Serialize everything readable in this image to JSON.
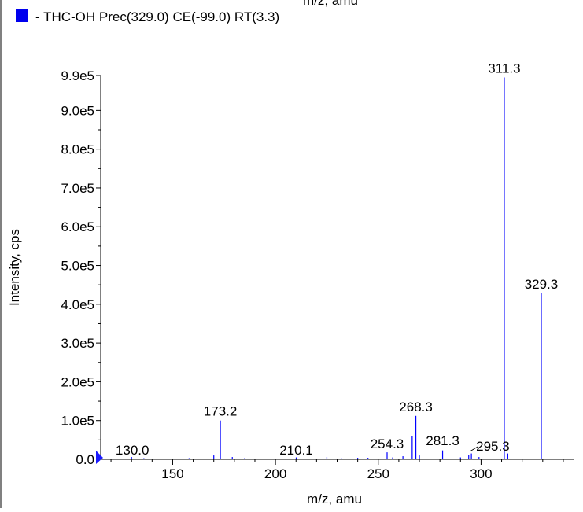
{
  "top_cut_label": "m/z, amu",
  "legend": {
    "color": "#0000ee",
    "text": "- THC-OH Prec(329.0) CE(-99.0) RT(3.3)"
  },
  "colors": {
    "series": "#0000ff",
    "axis": "#000000",
    "marker": "#1a1aff"
  },
  "chart_data": {
    "type": "bar",
    "xlabel": "m/z, amu",
    "ylabel": "Intensity, cps",
    "xlim": [
      115,
      345
    ],
    "ylim": [
      0,
      990000
    ],
    "x_ticks": [
      150,
      200,
      250,
      300
    ],
    "x_tick_labels": [
      "150",
      "200",
      "250",
      "300"
    ],
    "y_ticks": [
      0,
      100000,
      200000,
      300000,
      400000,
      500000,
      600000,
      700000,
      800000,
      900000,
      990000
    ],
    "y_tick_labels": [
      "0.0",
      "1.0e5",
      "2.0e5",
      "3.0e5",
      "4.0e5",
      "5.0e5",
      "6.0e5",
      "7.0e5",
      "8.0e5",
      "9.0e5",
      "9.9e5"
    ],
    "series": [
      {
        "x": [
          130.0,
          136.0,
          145.0,
          158.0,
          170.0,
          173.2,
          179.0,
          185.0,
          195.0,
          210.1,
          225.0,
          232.0,
          240.0,
          245.0,
          254.3,
          257.0,
          262.0,
          266.5,
          268.3,
          270.0,
          281.3,
          290.0,
          294.0,
          295.3,
          299.0,
          311.3,
          313.0,
          329.3
        ],
        "y": [
          6000,
          3000,
          2000,
          3000,
          10000,
          100000,
          6000,
          3000,
          2000,
          5000,
          6000,
          3000,
          4000,
          4000,
          18000,
          5000,
          8000,
          60000,
          112000,
          10000,
          23000,
          5000,
          12000,
          15000,
          6000,
          985000,
          15000,
          428000
        ]
      }
    ],
    "peak_labels": [
      {
        "x": 130.0,
        "text": "130.0"
      },
      {
        "x": 173.2,
        "text": "173.2"
      },
      {
        "x": 210.1,
        "text": "210.1"
      },
      {
        "x": 254.3,
        "text": "254.3"
      },
      {
        "x": 268.3,
        "text": "268.3"
      },
      {
        "x": 281.3,
        "text": "281.3"
      },
      {
        "x": 295.3,
        "text": "295.3"
      },
      {
        "x": 311.3,
        "text": "311.3"
      },
      {
        "x": 329.3,
        "text": "329.3"
      }
    ],
    "grid": false
  }
}
